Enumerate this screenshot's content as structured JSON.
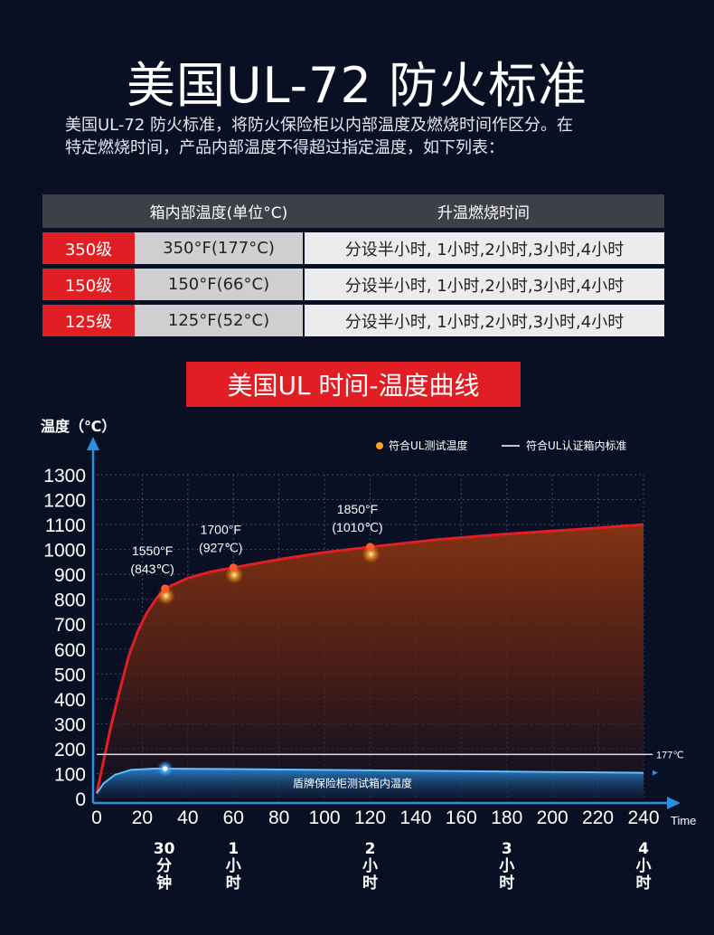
{
  "title": "美国UL-72 防火标准",
  "intro": {
    "line1": "美国UL-72  防火标准，将防火保险柜以内部温度及燃烧时间作区分。在",
    "line2": "特定燃烧时间，产品内部温度不得超过指定温度，如下列表："
  },
  "table": {
    "header": {
      "col2": "箱内部温度(单位°C)",
      "col3": "升温燃烧时间"
    },
    "rows": [
      {
        "grade": "350级",
        "temp": "350°F(177°C)",
        "time": "分设半小时, 1小时,2小时,3小时,4小时"
      },
      {
        "grade": "150级",
        "temp": "150°F(66°C)",
        "time": "分设半小时, 1小时,2小时,3小时,4小时"
      },
      {
        "grade": "125级",
        "temp": "125°F(52°C)",
        "time": "分设半小时, 1小时,2小时,3小时,4小时"
      }
    ]
  },
  "banner": "美国UL 时间-温度曲线",
  "colors": {
    "red": "#e01e24",
    "blue": "#2a8fe0",
    "background": "#0a1024"
  },
  "chart_data": {
    "type": "area",
    "ylabel": "温度（℃）",
    "xlabel": "Time",
    "xlim": [
      0,
      240
    ],
    "ylim": [
      0,
      1300
    ],
    "xticks": [
      "0",
      "20",
      "40",
      "60",
      "80",
      "100",
      "120",
      "140",
      "160",
      "180",
      "200",
      "220",
      "240"
    ],
    "yticks": [
      "0",
      "100",
      "200",
      "300",
      "400",
      "500",
      "600",
      "700",
      "800",
      "900",
      "1000",
      "1100",
      "1200",
      "1300"
    ],
    "grid": true,
    "legend": {
      "position": "top-right",
      "dot_label": "符合UL测试温度",
      "line_label": "符合UL认证箱内标准"
    },
    "series": [
      {
        "name": "符合UL测试温度",
        "color": "#e01e24",
        "points": [
          [
            0,
            20
          ],
          [
            3,
            150
          ],
          [
            6,
            280
          ],
          [
            10,
            430
          ],
          [
            14,
            570
          ],
          [
            18,
            670
          ],
          [
            22,
            745
          ],
          [
            26,
            800
          ],
          [
            30,
            843
          ],
          [
            40,
            885
          ],
          [
            50,
            910
          ],
          [
            60,
            927
          ],
          [
            80,
            960
          ],
          [
            100,
            988
          ],
          [
            120,
            1010
          ],
          [
            150,
            1040
          ],
          [
            180,
            1062
          ],
          [
            210,
            1080
          ],
          [
            240,
            1100
          ]
        ]
      },
      {
        "name": "盾牌保险柜测试箱内温度",
        "color": "#2a8fe0",
        "points": [
          [
            0,
            20
          ],
          [
            3,
            60
          ],
          [
            8,
            95
          ],
          [
            15,
            115
          ],
          [
            25,
            120
          ],
          [
            30,
            120
          ],
          [
            60,
            118
          ],
          [
            120,
            113
          ],
          [
            180,
            108
          ],
          [
            240,
            103
          ]
        ]
      }
    ],
    "reference_line": {
      "y": 177,
      "label": "177℃"
    },
    "annotations": [
      {
        "x": 30,
        "y": 843,
        "label_f": "1550°F",
        "label_c": "(843℃)"
      },
      {
        "x": 60,
        "y": 927,
        "label_f": "1700°F",
        "label_c": "(927℃)"
      },
      {
        "x": 120,
        "y": 1010,
        "label_f": "1850°F",
        "label_c": "(1010℃)"
      }
    ],
    "blue_label": "盾牌保险柜测试箱内温度",
    "blue_marker_x": 30,
    "time_marks": [
      {
        "x": 30,
        "text": "30\n分\n钟"
      },
      {
        "x": 60,
        "text": "1\n小\n时"
      },
      {
        "x": 120,
        "text": "2\n小\n时"
      },
      {
        "x": 180,
        "text": "3\n小\n时"
      },
      {
        "x": 240,
        "text": "4\n小\n时"
      }
    ]
  }
}
